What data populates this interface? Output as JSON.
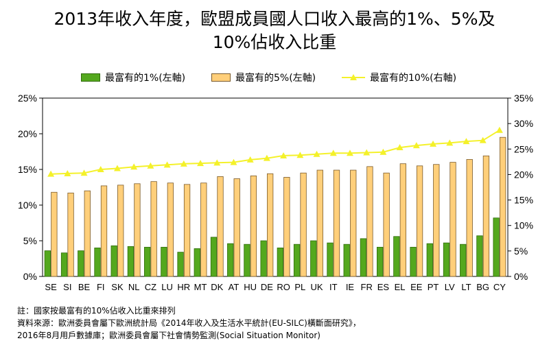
{
  "title": {
    "line1": "2013年收入年度，歐盟成員國人口收入最高的1%、5%及",
    "line2": "10%佔收入比重"
  },
  "legend": {
    "top1": "最富有的1%(左軸)",
    "top5": "最富有的5%(左軸)",
    "top10": "最富有的10%(右軸)"
  },
  "chart_data": {
    "type": "bar",
    "categories": [
      "SE",
      "SI",
      "BE",
      "FI",
      "SK",
      "NL",
      "CZ",
      "LU",
      "HR",
      "MT",
      "DK",
      "AT",
      "HU",
      "DE",
      "RO",
      "PL",
      "UK",
      "IT",
      "IE",
      "FR",
      "ES",
      "EL",
      "EE",
      "PT",
      "LV",
      "LT",
      "BG",
      "CY"
    ],
    "series": [
      {
        "name": "最富有的1%(左軸)",
        "type": "bar",
        "axis": "left",
        "color": "#54a81e",
        "values": [
          3.6,
          3.3,
          3.6,
          4.0,
          4.3,
          4.2,
          4.1,
          4.1,
          3.4,
          3.9,
          5.5,
          4.6,
          4.5,
          5.0,
          4.0,
          4.5,
          5.0,
          4.7,
          4.5,
          5.3,
          4.1,
          5.6,
          4.1,
          4.6,
          4.7,
          4.5,
          5.7,
          8.2
        ]
      },
      {
        "name": "最富有的5%(左軸)",
        "type": "bar",
        "axis": "left",
        "color": "#ffcf7a",
        "values": [
          11.8,
          11.7,
          12.0,
          12.7,
          12.8,
          13.0,
          13.3,
          13.1,
          12.9,
          13.1,
          14.0,
          13.7,
          14.1,
          14.4,
          13.9,
          14.5,
          14.9,
          14.9,
          14.9,
          15.4,
          14.5,
          15.8,
          15.5,
          15.7,
          16.0,
          16.4,
          16.9,
          19.5
        ]
      },
      {
        "name": "最富有的10%(右軸)",
        "type": "line",
        "axis": "right",
        "color": "#f4f12a",
        "values": [
          20.1,
          20.2,
          20.3,
          21.0,
          21.2,
          21.5,
          21.7,
          21.9,
          22.1,
          22.2,
          22.3,
          22.4,
          22.9,
          23.2,
          23.7,
          23.8,
          24.0,
          24.2,
          24.2,
          24.3,
          24.4,
          25.3,
          25.7,
          26.0,
          26.2,
          26.5,
          26.7,
          28.7
        ]
      }
    ],
    "y_left": {
      "min": 0,
      "max": 25,
      "ticks": [
        "0%",
        "5%",
        "10%",
        "15%",
        "20%",
        "25%"
      ]
    },
    "y_right": {
      "min": 0,
      "max": 35,
      "ticks": [
        "0%",
        "5%",
        "10%",
        "15%",
        "20%",
        "25%",
        "30%",
        "35%"
      ]
    },
    "grid": false,
    "legend_position": "top"
  },
  "notes": {
    "line1": "註：國家按最富有的10%佔收入比重來排列",
    "line2": "資料來源：歐洲委員會屬下歐洲統計局《2014年收入及生活水平統計(EU-SILC)橫斷面研究》，",
    "line3": "2016年8月用戶數據庫；歐洲委員會屬下社會情勢監測(Social Situation Monitor)"
  }
}
